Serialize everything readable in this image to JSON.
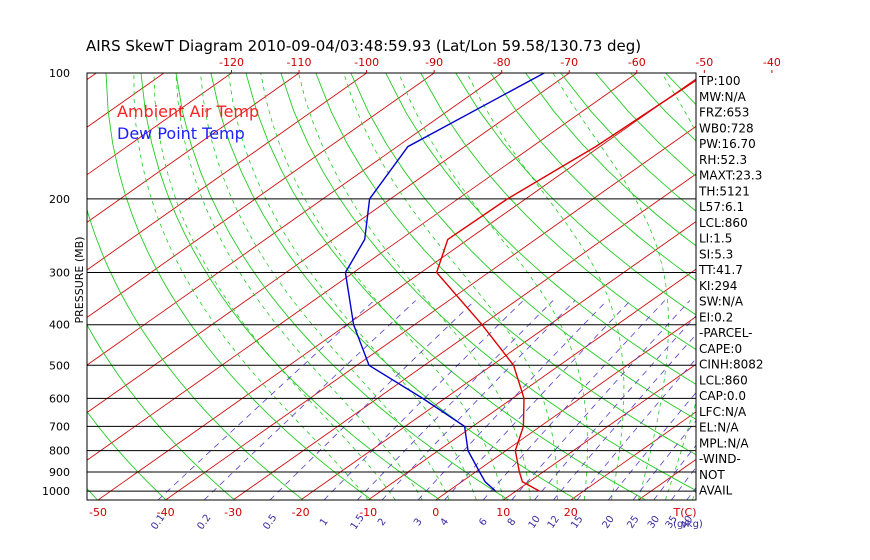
{
  "chart_data": {
    "type": "skewt",
    "title": "AIRS SkewT Diagram 2010-09-04/03:48:59.93 (Lat/Lon 59.58/130.73 deg)",
    "ylabel": "PRESSURE (MB)",
    "pressure_levels": [
      100,
      200,
      300,
      400,
      500,
      600,
      700,
      800,
      900,
      1000
    ],
    "bottom_temp_ticks": [
      -50,
      -40,
      -30,
      -20,
      -10,
      0,
      10,
      20
    ],
    "bottom_temp_unit": "T(C)",
    "top_temp_ticks": [
      -120,
      -110,
      -100,
      -90,
      -80,
      -70,
      -60,
      -50,
      -40
    ],
    "mixing_ratio_labels": [
      "0.1",
      "0.2",
      "0.5",
      "1",
      "1.5",
      "2",
      "3",
      "4",
      "6",
      "8",
      "10",
      "12",
      "15",
      "20",
      "25",
      "30",
      "35",
      "40"
    ],
    "mixing_ratio_unit": "(g/kg)",
    "legend": [
      {
        "name": "Ambient Air Temp",
        "color": "#ff2020"
      },
      {
        "name": "Dew Point Temp",
        "color": "#2020ff"
      }
    ],
    "series": [
      {
        "name": "Ambient Air Temp",
        "color": "#dd0000",
        "pressure": [
          100,
          150,
          200,
          250,
          300,
          400,
          500,
          600,
          700,
          800,
          900,
          950,
          1000
        ],
        "temp": [
          -49.6,
          -50.6,
          -52.7,
          -53.0,
          -47.7,
          -30.0,
          -16.8,
          -8.3,
          -2.5,
          1.4,
          6.5,
          9.0,
          13.5
        ]
      },
      {
        "name": "Dew Point Temp",
        "color": "#0000cc",
        "pressure": [
          100,
          150,
          200,
          250,
          300,
          400,
          500,
          600,
          700,
          800,
          900,
          950,
          1000
        ],
        "temp": [
          -73.7,
          -78.4,
          -73.1,
          -65.3,
          -61.2,
          -49.0,
          -38.2,
          -23.3,
          -11.2,
          -5.6,
          0.6,
          3.5,
          7.0
        ]
      }
    ],
    "indices": [
      "TP:100",
      "MW:N/A",
      "FRZ:653",
      "WB0:728",
      "PW:16.70",
      "RH:52.3",
      "MAXT:23.3",
      "TH:5121",
      "L57:6.1",
      "LCL:860",
      "LI:1.5",
      "SI:5.3",
      "TT:41.7",
      "KI:294",
      "SW:N/A",
      "EI:0.2",
      "-PARCEL-",
      "CAPE:0",
      "CINH:8082",
      "LCL:860",
      "CAP:0.0",
      "LFC:N/A",
      "EL:N/A",
      "MPL:N/A",
      "-WIND-",
      "NOT",
      "AVAIL"
    ]
  }
}
